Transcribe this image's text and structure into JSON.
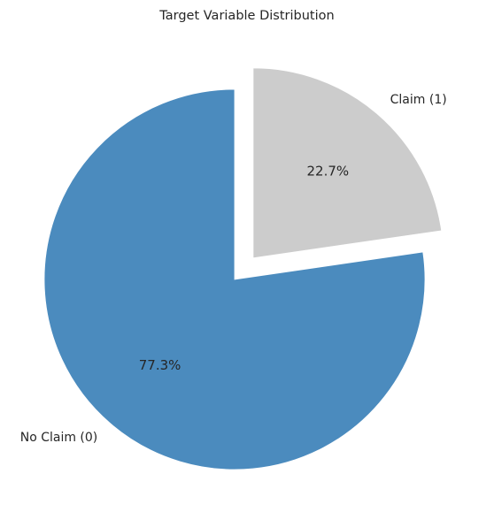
{
  "chart_data": {
    "type": "pie",
    "title": "Target Variable Distribution",
    "labels": [
      "No Claim (0)",
      "Claim (1)"
    ],
    "values": [
      77.3,
      22.7
    ],
    "percent_labels": [
      "77.3%",
      "22.7%"
    ],
    "colors": [
      "#4b8bbe",
      "#cccccc"
    ],
    "exploded": [
      "none",
      "Claim (1)"
    ],
    "start": "top, clockwise"
  }
}
